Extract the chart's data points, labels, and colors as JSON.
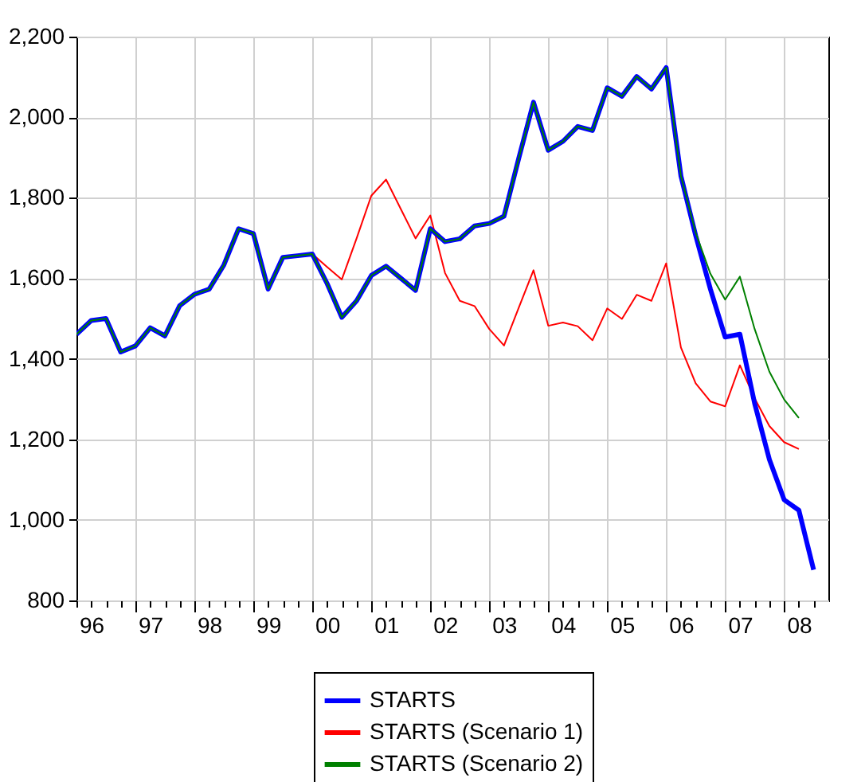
{
  "chart_data": {
    "type": "line",
    "categories": [
      null,
      "96",
      null,
      null,
      null,
      "97",
      null,
      null,
      null,
      "98",
      null,
      null,
      null,
      "99",
      null,
      null,
      null,
      "00",
      null,
      null,
      null,
      "01",
      null,
      null,
      null,
      "02",
      null,
      null,
      null,
      "03",
      null,
      null,
      null,
      "04",
      null,
      null,
      null,
      "05",
      null,
      null,
      null,
      "06",
      null,
      null,
      null,
      "07",
      null,
      null,
      null,
      "08",
      null
    ],
    "series": [
      {
        "name": "STARTS",
        "color": "#0000ff",
        "values": [
          1461,
          1495,
          1500,
          1417,
          1432,
          1477,
          1457,
          1532,
          1560,
          1573,
          1633,
          1723,
          1711,
          1573,
          1652,
          1656,
          1660,
          1587,
          1503,
          1544,
          1607,
          1630,
          1600,
          1570,
          1723,
          1691,
          1698,
          1730,
          1736,
          1754,
          1898,
          2037,
          1918,
          1940,
          1977,
          1967,
          2073,
          2052,
          2101,
          2070,
          2123,
          1854,
          1706,
          1573,
          1454,
          1461,
          1289,
          1150,
          1050,
          1024,
          876
        ]
      },
      {
        "name": "STARTS (Scenario 1)",
        "color": "#ff0000",
        "values": [
          null,
          null,
          null,
          null,
          null,
          null,
          null,
          null,
          null,
          null,
          null,
          null,
          null,
          null,
          null,
          null,
          1660,
          1628,
          1597,
          1699,
          1805,
          1845,
          1772,
          1699,
          1756,
          1613,
          1544,
          1531,
          1474,
          1433,
          1527,
          1620,
          1482,
          1490,
          1481,
          1446,
          1525,
          1499,
          1559,
          1544,
          1637,
          1428,
          1339,
          1294,
          1282,
          1384,
          1302,
          1233,
          1193,
          1176,
          null
        ]
      },
      {
        "name": "STARTS (Scenario 2)",
        "color": "#008000",
        "values": [
          1461,
          1495,
          1500,
          1417,
          1432,
          1477,
          1457,
          1532,
          1560,
          1573,
          1633,
          1723,
          1711,
          1573,
          1652,
          1656,
          1660,
          1587,
          1503,
          1544,
          1607,
          1630,
          1600,
          1570,
          1723,
          1691,
          1698,
          1730,
          1736,
          1754,
          1898,
          2037,
          1918,
          1940,
          1977,
          1967,
          2073,
          2052,
          2101,
          2070,
          2123,
          1854,
          1713,
          1611,
          1547,
          1604,
          1474,
          1368,
          1299,
          1253,
          null
        ]
      }
    ],
    "ylim": [
      800,
      2200
    ],
    "yticks": [
      {
        "value": 800,
        "label": "800"
      },
      {
        "value": 1000,
        "label": "1,000"
      },
      {
        "value": 1200,
        "label": "1,200"
      },
      {
        "value": 1400,
        "label": "1,400"
      },
      {
        "value": 1600,
        "label": "1,600"
      },
      {
        "value": 1800,
        "label": "1,800"
      },
      {
        "value": 2000,
        "label": "2,000"
      },
      {
        "value": 2200,
        "label": "2,200"
      }
    ],
    "grid": true,
    "legend": "bottom"
  }
}
